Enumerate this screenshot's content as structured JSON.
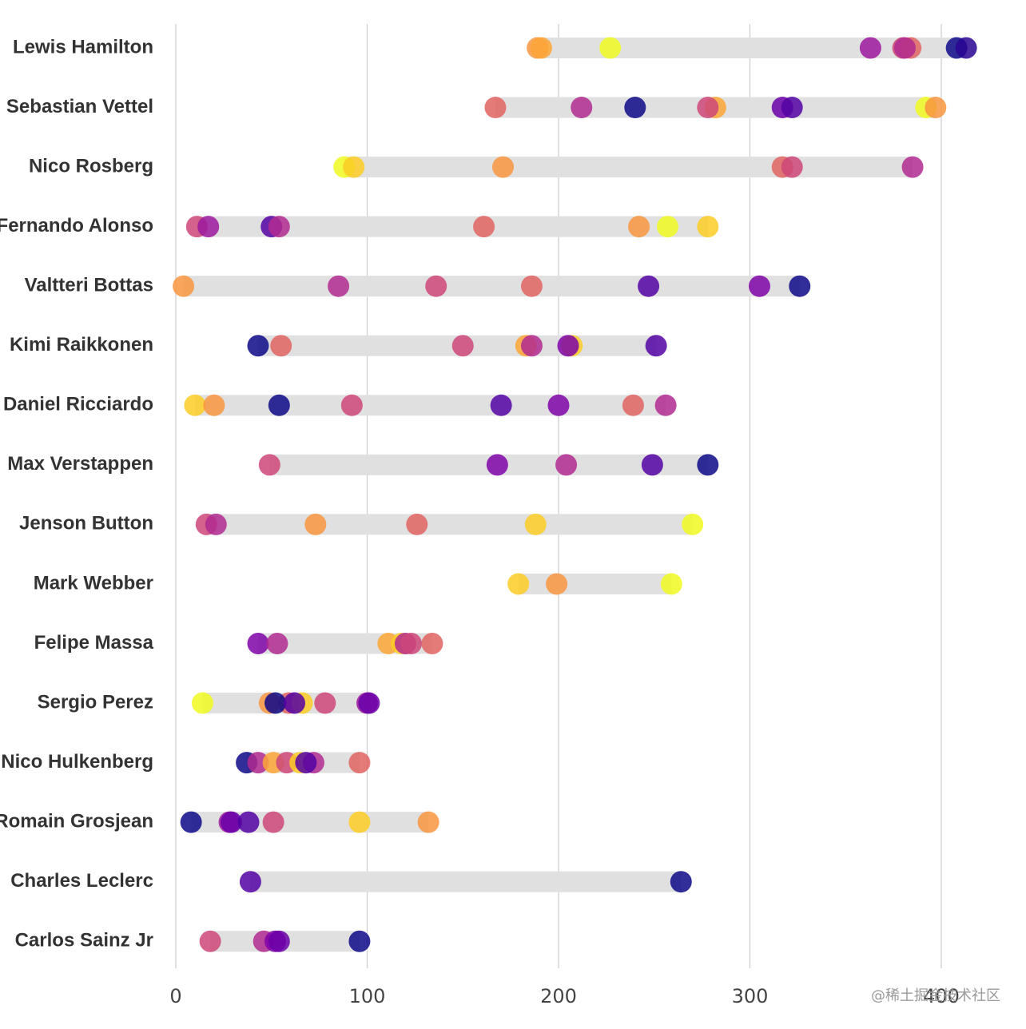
{
  "chart_data": {
    "type": "dot-range",
    "title": "",
    "xlabel": "",
    "ylabel": "",
    "xlim": [
      0,
      420
    ],
    "xticks": [
      0,
      100,
      200,
      300,
      400
    ],
    "grid": "vertical",
    "drivers": [
      {
        "name": "Lewis Hamilton",
        "points": [
          {
            "value": 189,
            "color": "#f89540"
          },
          {
            "value": 191,
            "color": "#fca636"
          },
          {
            "value": 227,
            "color": "#f0f921"
          },
          {
            "value": 363,
            "color": "#9c179e"
          },
          {
            "value": 380,
            "color": "#cc4778"
          },
          {
            "value": 384,
            "color": "#e16462"
          },
          {
            "value": 381,
            "color": "#b12a90"
          },
          {
            "value": 408,
            "color": "#0d0887"
          },
          {
            "value": 413,
            "color": "#2a0593"
          }
        ]
      },
      {
        "name": "Sebastian Vettel",
        "points": [
          {
            "value": 167,
            "color": "#e16462"
          },
          {
            "value": 212,
            "color": "#b12a90"
          },
          {
            "value": 240,
            "color": "#0d0887"
          },
          {
            "value": 282,
            "color": "#fca636"
          },
          {
            "value": 278,
            "color": "#cc4778"
          },
          {
            "value": 317,
            "color": "#6a00a8"
          },
          {
            "value": 322,
            "color": "#5302a3"
          },
          {
            "value": 392,
            "color": "#f0f921"
          },
          {
            "value": 397,
            "color": "#f89540"
          }
        ]
      },
      {
        "name": "Nico Rosberg",
        "points": [
          {
            "value": 88,
            "color": "#f0f921"
          },
          {
            "value": 93,
            "color": "#fccd25"
          },
          {
            "value": 171,
            "color": "#f89540"
          },
          {
            "value": 317,
            "color": "#e16462"
          },
          {
            "value": 322,
            "color": "#cc4778"
          },
          {
            "value": 385,
            "color": "#b12a90"
          }
        ]
      },
      {
        "name": "Fernando Alonso",
        "points": [
          {
            "value": 11,
            "color": "#cc4778"
          },
          {
            "value": 17,
            "color": "#9c179e"
          },
          {
            "value": 50,
            "color": "#5302a3"
          },
          {
            "value": 54,
            "color": "#b12a90"
          },
          {
            "value": 161,
            "color": "#e16462"
          },
          {
            "value": 242,
            "color": "#f89540"
          },
          {
            "value": 257,
            "color": "#f0f921"
          },
          {
            "value": 278,
            "color": "#fccd25"
          }
        ]
      },
      {
        "name": "Valtteri Bottas",
        "points": [
          {
            "value": 4,
            "color": "#f89540"
          },
          {
            "value": 85,
            "color": "#b12a90"
          },
          {
            "value": 136,
            "color": "#cc4778"
          },
          {
            "value": 186,
            "color": "#e16462"
          },
          {
            "value": 247,
            "color": "#5302a3"
          },
          {
            "value": 305,
            "color": "#7e03a8"
          },
          {
            "value": 326,
            "color": "#0d0887"
          }
        ]
      },
      {
        "name": "Kimi Raikkonen",
        "points": [
          {
            "value": 43,
            "color": "#0d0887"
          },
          {
            "value": 55,
            "color": "#e16462"
          },
          {
            "value": 150,
            "color": "#cc4778"
          },
          {
            "value": 183,
            "color": "#fca636"
          },
          {
            "value": 186,
            "color": "#b12a90"
          },
          {
            "value": 207,
            "color": "#fccd25"
          },
          {
            "value": 205,
            "color": "#7e03a8"
          },
          {
            "value": 251,
            "color": "#5302a3"
          }
        ]
      },
      {
        "name": "Daniel Ricciardo",
        "points": [
          {
            "value": 10,
            "color": "#fccd25"
          },
          {
            "value": 20,
            "color": "#f89540"
          },
          {
            "value": 54,
            "color": "#0d0887"
          },
          {
            "value": 92,
            "color": "#cc4778"
          },
          {
            "value": 170,
            "color": "#5302a3"
          },
          {
            "value": 200,
            "color": "#7e03a8"
          },
          {
            "value": 239,
            "color": "#e16462"
          },
          {
            "value": 256,
            "color": "#b12a90"
          }
        ]
      },
      {
        "name": "Max Verstappen",
        "points": [
          {
            "value": 49,
            "color": "#cc4778"
          },
          {
            "value": 168,
            "color": "#7e03a8"
          },
          {
            "value": 204,
            "color": "#b12a90"
          },
          {
            "value": 249,
            "color": "#5302a3"
          },
          {
            "value": 278,
            "color": "#0d0887"
          }
        ]
      },
      {
        "name": "Jenson Button",
        "points": [
          {
            "value": 16,
            "color": "#cc4778"
          },
          {
            "value": 21,
            "color": "#b12a90"
          },
          {
            "value": 73,
            "color": "#f89540"
          },
          {
            "value": 126,
            "color": "#e16462"
          },
          {
            "value": 188,
            "color": "#fccd25"
          },
          {
            "value": 270,
            "color": "#f0f921"
          }
        ]
      },
      {
        "name": "Mark Webber",
        "points": [
          {
            "value": 179,
            "color": "#fccd25"
          },
          {
            "value": 199,
            "color": "#f89540"
          },
          {
            "value": 259,
            "color": "#f0f921"
          }
        ]
      },
      {
        "name": "Felipe Massa",
        "points": [
          {
            "value": 43,
            "color": "#7e03a8"
          },
          {
            "value": 53,
            "color": "#b12a90"
          },
          {
            "value": 111,
            "color": "#fca636"
          },
          {
            "value": 118,
            "color": "#fccd25"
          },
          {
            "value": 120,
            "color": "#b12a90"
          },
          {
            "value": 123,
            "color": "#cc4778"
          },
          {
            "value": 134,
            "color": "#e16462"
          }
        ]
      },
      {
        "name": "Sergio Perez",
        "points": [
          {
            "value": 14,
            "color": "#f0f921"
          },
          {
            "value": 49,
            "color": "#f89540"
          },
          {
            "value": 59,
            "color": "#e16462"
          },
          {
            "value": 66,
            "color": "#fccd25"
          },
          {
            "value": 52,
            "color": "#0d0887"
          },
          {
            "value": 62,
            "color": "#5302a3"
          },
          {
            "value": 78,
            "color": "#cc4778"
          },
          {
            "value": 100,
            "color": "#9c179e"
          },
          {
            "value": 101,
            "color": "#6a00a8"
          }
        ]
      },
      {
        "name": "Nico Hulkenberg",
        "points": [
          {
            "value": 37,
            "color": "#0d0887"
          },
          {
            "value": 43,
            "color": "#b12a90"
          },
          {
            "value": 51,
            "color": "#fca636"
          },
          {
            "value": 58,
            "color": "#cc4778"
          },
          {
            "value": 65,
            "color": "#fccd25"
          },
          {
            "value": 72,
            "color": "#b12a90"
          },
          {
            "value": 68,
            "color": "#5302a3"
          },
          {
            "value": 96,
            "color": "#e16462"
          }
        ]
      },
      {
        "name": "Romain Grosjean",
        "points": [
          {
            "value": 8,
            "color": "#0d0887"
          },
          {
            "value": 28,
            "color": "#9c179e"
          },
          {
            "value": 29,
            "color": "#6a00a8"
          },
          {
            "value": 38,
            "color": "#5302a3"
          },
          {
            "value": 51,
            "color": "#cc4778"
          },
          {
            "value": 96,
            "color": "#fccd25"
          },
          {
            "value": 132,
            "color": "#f89540"
          }
        ]
      },
      {
        "name": "Charles Leclerc",
        "points": [
          {
            "value": 39,
            "color": "#5302a3"
          },
          {
            "value": 264,
            "color": "#0d0887"
          }
        ]
      },
      {
        "name": "Carlos Sainz Jr",
        "points": [
          {
            "value": 18,
            "color": "#cc4778"
          },
          {
            "value": 46,
            "color": "#b12a90"
          },
          {
            "value": 52,
            "color": "#7e03a8"
          },
          {
            "value": 54,
            "color": "#6a00a8"
          },
          {
            "value": 96,
            "color": "#0d0887"
          }
        ]
      }
    ],
    "colors": {
      "bar": "#e0e0e0",
      "grid": "#cccccc",
      "label": "#333333",
      "tick": "#444444"
    }
  },
  "watermark": "@稀土掘金技术社区"
}
